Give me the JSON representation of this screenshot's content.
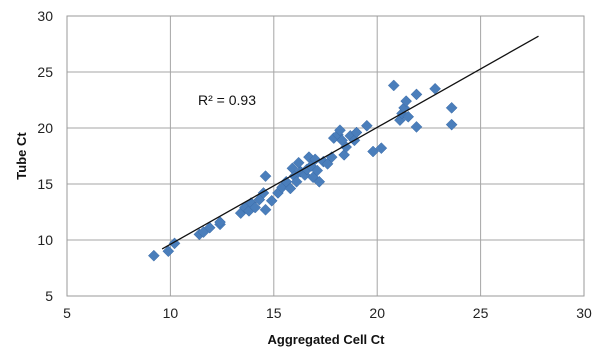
{
  "chart_data": {
    "type": "scatter",
    "xlabel": "Aggregated Cell Ct",
    "ylabel": "Tube Ct",
    "xlim": [
      5,
      30
    ],
    "ylim": [
      5,
      30
    ],
    "xticks": [
      "5",
      "10",
      "15",
      "20",
      "25",
      "30"
    ],
    "yticks": [
      "5",
      "10",
      "15",
      "20",
      "25",
      "30"
    ],
    "grid": true,
    "annotation": "R² = 0.93",
    "marker_color": "#4a7ebb",
    "trendline_color": "#111111",
    "trendline": {
      "x": [
        9.6,
        27.8
      ],
      "y": [
        9.2,
        28.2
      ]
    },
    "series": [
      {
        "points": [
          [
            9.2,
            8.6
          ],
          [
            9.9,
            9.0
          ],
          [
            10.2,
            9.7
          ],
          [
            11.4,
            10.5
          ],
          [
            11.6,
            10.7
          ],
          [
            11.9,
            11.1
          ],
          [
            12.4,
            11.4
          ],
          [
            12.4,
            11.6
          ],
          [
            13.4,
            12.4
          ],
          [
            13.6,
            12.9
          ],
          [
            13.8,
            12.6
          ],
          [
            13.9,
            13.3
          ],
          [
            14.1,
            12.9
          ],
          [
            14.3,
            13.6
          ],
          [
            14.5,
            14.2
          ],
          [
            14.6,
            12.7
          ],
          [
            14.6,
            15.7
          ],
          [
            14.9,
            13.5
          ],
          [
            15.2,
            14.2
          ],
          [
            15.4,
            14.7
          ],
          [
            15.6,
            15.2
          ],
          [
            15.8,
            14.6
          ],
          [
            15.9,
            16.4
          ],
          [
            16.0,
            15.7
          ],
          [
            16.1,
            15.2
          ],
          [
            16.2,
            16.9
          ],
          [
            16.3,
            16.1
          ],
          [
            16.5,
            15.8
          ],
          [
            16.6,
            16.3
          ],
          [
            16.7,
            17.4
          ],
          [
            16.8,
            16.6
          ],
          [
            16.9,
            15.6
          ],
          [
            17.0,
            17.2
          ],
          [
            17.1,
            16.2
          ],
          [
            17.2,
            15.2
          ],
          [
            17.4,
            17.0
          ],
          [
            17.6,
            16.8
          ],
          [
            17.8,
            17.4
          ],
          [
            17.9,
            19.1
          ],
          [
            18.1,
            19.4
          ],
          [
            18.2,
            19.8
          ],
          [
            18.3,
            18.9
          ],
          [
            18.4,
            17.6
          ],
          [
            18.5,
            18.3
          ],
          [
            18.7,
            19.3
          ],
          [
            18.9,
            18.9
          ],
          [
            19.0,
            19.6
          ],
          [
            19.5,
            20.2
          ],
          [
            19.8,
            17.9
          ],
          [
            20.2,
            18.2
          ],
          [
            20.8,
            23.8
          ],
          [
            21.1,
            20.7
          ],
          [
            21.2,
            21.3
          ],
          [
            21.3,
            21.8
          ],
          [
            21.4,
            22.4
          ],
          [
            21.5,
            21.0
          ],
          [
            21.9,
            20.1
          ],
          [
            21.9,
            23.0
          ],
          [
            22.8,
            23.5
          ],
          [
            23.6,
            21.8
          ],
          [
            23.6,
            20.3
          ]
        ]
      }
    ]
  }
}
